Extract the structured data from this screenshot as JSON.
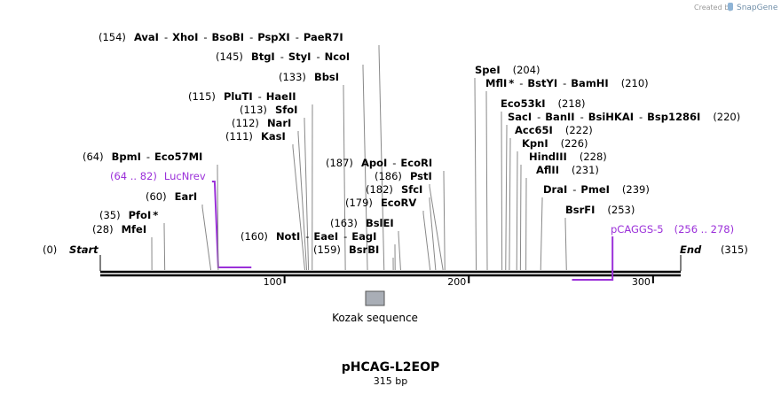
{
  "credit": "Created by",
  "brand": "SnapGene",
  "title": "pHCAG-L2EOP",
  "subtitle": "315 bp",
  "length": 315,
  "start": {
    "label": "Start",
    "pos": "(0)"
  },
  "end": {
    "label": "End",
    "pos": "(315)"
  },
  "ticks": [
    100,
    200,
    300
  ],
  "enzymes": [
    {
      "names": [
        "AvaI",
        "XhoI",
        "BsoBI",
        "PspXI",
        "PaeR7I"
      ],
      "pos": 154,
      "star": false,
      "side": "left"
    },
    {
      "names": [
        "BtgI",
        "StyI",
        "NcoI"
      ],
      "pos": 145,
      "star": false,
      "side": "left"
    },
    {
      "names": [
        "BbsI"
      ],
      "pos": 133,
      "star": false,
      "side": "left"
    },
    {
      "names": [
        "PluTI",
        "HaeII"
      ],
      "pos": 115,
      "star": false,
      "side": "left"
    },
    {
      "names": [
        "SfoI"
      ],
      "pos": 113,
      "star": false,
      "side": "left"
    },
    {
      "names": [
        "NarI"
      ],
      "pos": 112,
      "star": false,
      "side": "left"
    },
    {
      "names": [
        "KasI"
      ],
      "pos": 111,
      "star": false,
      "side": "left"
    },
    {
      "names": [
        "BpmI",
        "Eco57MI"
      ],
      "pos": 64,
      "star": false,
      "side": "left"
    },
    {
      "names": [
        "EarI"
      ],
      "pos": 60,
      "star": false,
      "side": "left"
    },
    {
      "names": [
        "PfoI"
      ],
      "pos": 35,
      "star": true,
      "side": "left"
    },
    {
      "names": [
        "MfeI"
      ],
      "pos": 28,
      "star": false,
      "side": "left"
    },
    {
      "names": [
        "ApoI",
        "EcoRI"
      ],
      "pos": 187,
      "star": false,
      "side": "left"
    },
    {
      "names": [
        "PstI"
      ],
      "pos": 186,
      "star": false,
      "side": "left"
    },
    {
      "names": [
        "SfcI"
      ],
      "pos": 182,
      "star": false,
      "side": "left"
    },
    {
      "names": [
        "EcoRV"
      ],
      "pos": 179,
      "star": false,
      "side": "left"
    },
    {
      "names": [
        "BslEI"
      ],
      "pos": 163,
      "star": false,
      "side": "left"
    },
    {
      "names": [
        "NotI",
        "EaeI",
        "EagI"
      ],
      "pos": 160,
      "star": false,
      "side": "left"
    },
    {
      "names": [
        "BsrBI"
      ],
      "pos": 159,
      "star": false,
      "side": "left"
    },
    {
      "names": [
        "SpeI"
      ],
      "pos": 204,
      "star": false,
      "side": "right"
    },
    {
      "names": [
        "MflI",
        "BstYI",
        "BamHI"
      ],
      "pos": 210,
      "star": true,
      "side": "right"
    },
    {
      "names": [
        "Eco53kI"
      ],
      "pos": 218,
      "star": false,
      "side": "right"
    },
    {
      "names": [
        "SacI",
        "BanII",
        "BsiHKAI",
        "Bsp1286I"
      ],
      "pos": 220,
      "star": false,
      "side": "right"
    },
    {
      "names": [
        "Acc65I"
      ],
      "pos": 222,
      "star": false,
      "side": "right"
    },
    {
      "names": [
        "KpnI"
      ],
      "pos": 226,
      "star": false,
      "side": "right"
    },
    {
      "names": [
        "HindIII"
      ],
      "pos": 228,
      "star": false,
      "side": "right"
    },
    {
      "names": [
        "AflII"
      ],
      "pos": 231,
      "star": false,
      "side": "right"
    },
    {
      "names": [
        "DraI",
        "PmeI"
      ],
      "pos": 239,
      "star": false,
      "side": "right"
    },
    {
      "names": [
        "BsrFI"
      ],
      "pos": 253,
      "star": false,
      "side": "right"
    }
  ],
  "primers": [
    {
      "name": "LucNrev",
      "range": "(64 .. 82)",
      "start": 64,
      "end": 82,
      "side": "left"
    },
    {
      "name": "pCAGGS-5",
      "range": "(256 .. 278)",
      "start": 256,
      "end": 278,
      "side": "right"
    }
  ],
  "features": [
    {
      "name": "Kozak sequence",
      "start": 145,
      "end": 155,
      "color": "#a9aeb6"
    }
  ]
}
